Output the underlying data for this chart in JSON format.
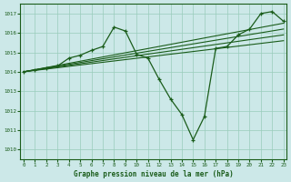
{
  "bg_color": "#cce8e8",
  "grid_color": "#99ccbb",
  "line_color": "#1a5c1a",
  "marker_color": "#1a5c1a",
  "title": "Graphe pression niveau de la mer (hPa)",
  "xlim": [
    -0.3,
    23.3
  ],
  "ylim": [
    1009.5,
    1017.5
  ],
  "xticks": [
    0,
    1,
    2,
    3,
    4,
    5,
    6,
    7,
    8,
    9,
    10,
    11,
    12,
    13,
    14,
    15,
    16,
    17,
    18,
    19,
    20,
    21,
    22,
    23
  ],
  "yticks": [
    1010,
    1011,
    1012,
    1013,
    1014,
    1015,
    1016,
    1017
  ],
  "main_line": {
    "x": [
      0,
      1,
      2,
      3,
      4,
      5,
      6,
      7,
      8,
      9,
      10,
      11,
      12,
      13,
      14,
      15,
      16,
      17,
      18,
      19,
      20,
      21,
      22,
      23
    ],
    "y": [
      1014.0,
      1014.1,
      1014.2,
      1014.3,
      1014.7,
      1014.85,
      1015.1,
      1015.3,
      1016.3,
      1016.1,
      1014.9,
      1014.7,
      1013.6,
      1012.6,
      1011.8,
      1010.5,
      1011.7,
      1015.2,
      1015.3,
      1015.9,
      1016.2,
      1017.0,
      1017.1,
      1016.6
    ]
  },
  "trend_lines": [
    {
      "x0": 0,
      "x1": 23,
      "y0": 1014.0,
      "y1": 1016.5
    },
    {
      "x0": 0,
      "x1": 23,
      "y0": 1014.0,
      "y1": 1016.2
    },
    {
      "x0": 0,
      "x1": 23,
      "y0": 1014.0,
      "y1": 1015.9
    },
    {
      "x0": 0,
      "x1": 23,
      "y0": 1014.0,
      "y1": 1015.6
    }
  ]
}
